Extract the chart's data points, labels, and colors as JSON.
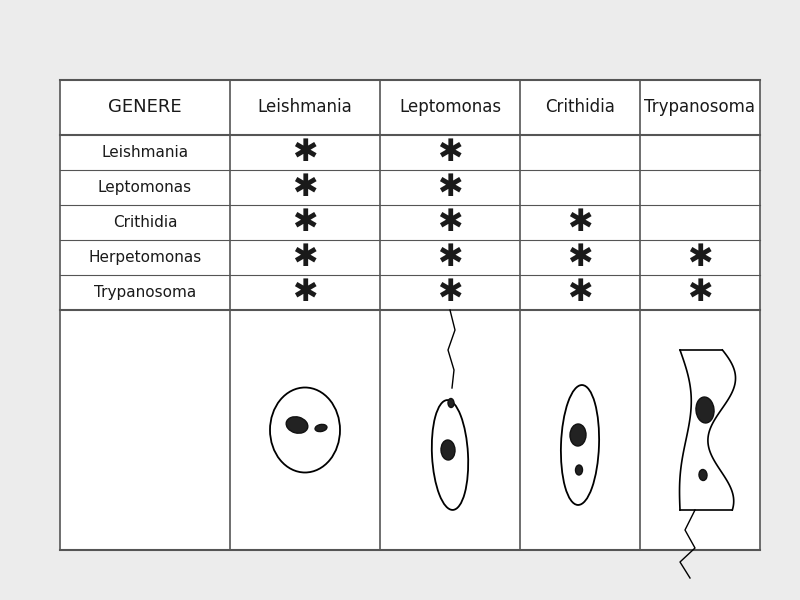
{
  "background_color": "#ececec",
  "table_bg": "#f5f5f5",
  "header_row": [
    "GENERE",
    "Leishmania",
    "Leptomonas",
    "Crithidia",
    "Trypanosoma"
  ],
  "row_labels": [
    "Leishmania",
    "Leptomonas",
    "Crithidia",
    "Herpetomonas",
    "Trypanosoma"
  ],
  "asterisk_matrix": [
    [
      true,
      true,
      false,
      false
    ],
    [
      true,
      true,
      false,
      false
    ],
    [
      true,
      true,
      true,
      false
    ],
    [
      true,
      true,
      true,
      true
    ],
    [
      true,
      true,
      true,
      true
    ]
  ],
  "line_color": "#555555",
  "text_color": "#1a1a1a",
  "font_family": "DejaVu Sans",
  "header_fontsize": 12,
  "label_fontsize": 11,
  "asterisk_fontsize": 22
}
